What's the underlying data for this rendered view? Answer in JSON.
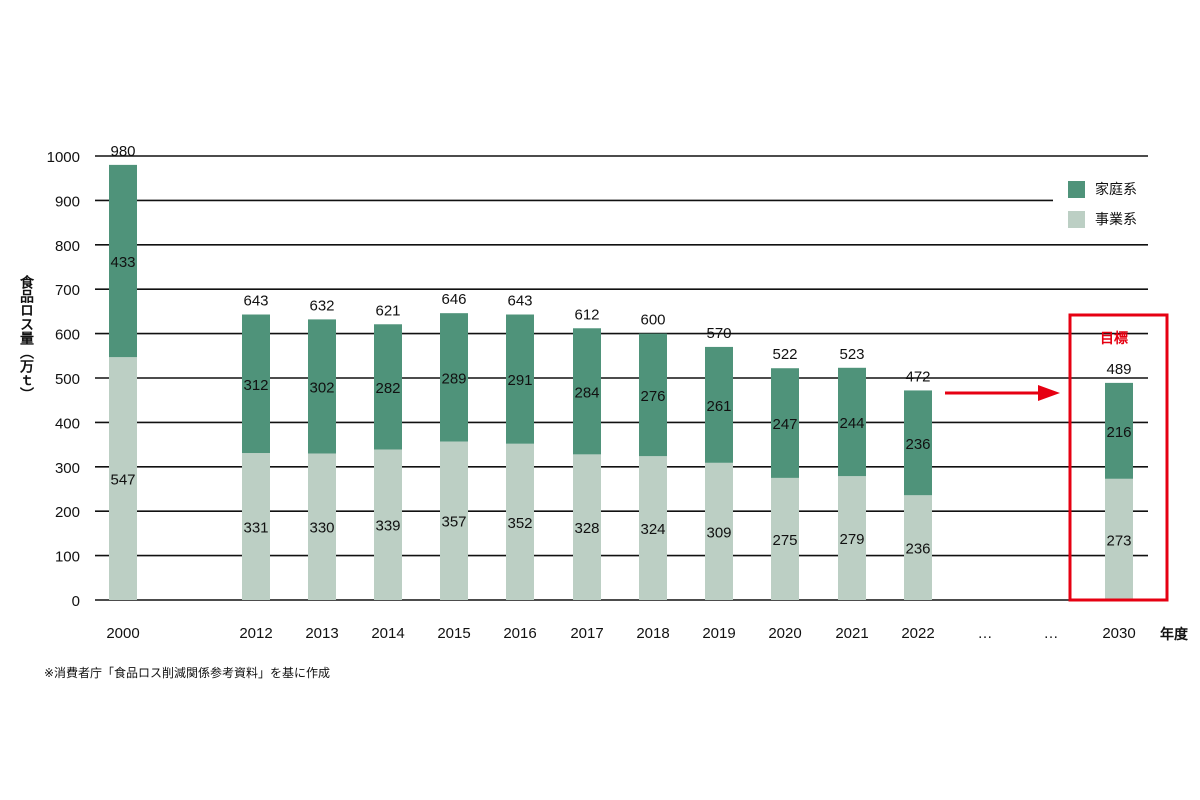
{
  "chart_data": {
    "type": "bar",
    "stacked": true,
    "ylabel": "食品ロス量（万ｔ）",
    "xlabel": "年度",
    "ylim": [
      0,
      1000
    ],
    "yticks": [
      0,
      100,
      200,
      300,
      400,
      500,
      600,
      700,
      800,
      900,
      1000
    ],
    "grid": true,
    "legend_position": "top-right",
    "categories": [
      "2000",
      "2012",
      "2013",
      "2014",
      "2015",
      "2016",
      "2017",
      "2018",
      "2019",
      "2020",
      "2021",
      "2022",
      "…",
      "…",
      "2030"
    ],
    "series": [
      {
        "name": "事業系",
        "color": "#bccfc4",
        "values": [
          547,
          331,
          330,
          339,
          357,
          352,
          328,
          324,
          309,
          275,
          279,
          236,
          null,
          null,
          273
        ]
      },
      {
        "name": "家庭系",
        "color": "#4f937a",
        "values": [
          433,
          312,
          302,
          282,
          289,
          291,
          284,
          276,
          261,
          247,
          244,
          236,
          null,
          null,
          216
        ]
      }
    ],
    "totals": [
      980,
      643,
      632,
      621,
      646,
      643,
      612,
      600,
      570,
      522,
      523,
      472,
      null,
      null,
      489
    ],
    "target_label": "目標",
    "target_category": "2030",
    "highlight_color": "#e60012",
    "note": "※消費者庁「食品ロス削減関係参考資料」を基に作成"
  }
}
